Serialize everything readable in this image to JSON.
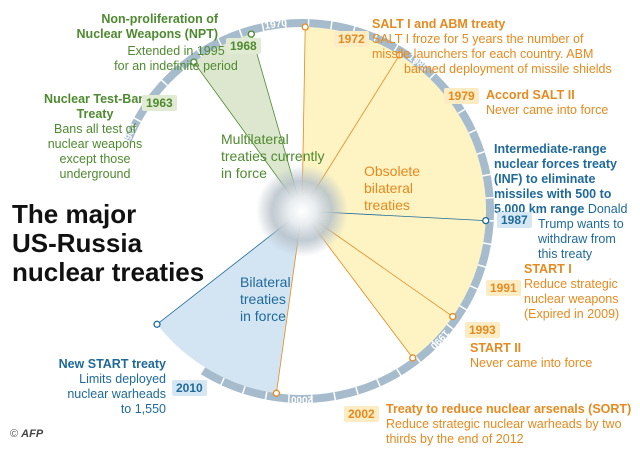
{
  "title": {
    "line1": "The major",
    "line2": "US-Russia",
    "line3": "nuclear treaties"
  },
  "zones": {
    "multilateral": [
      "Multilateral",
      "treaties currently",
      "in force"
    ],
    "obsolete": [
      "Obsolete",
      "bilateral",
      "treaties"
    ],
    "bilateral": [
      "Bilateral",
      "treaties",
      "in force"
    ]
  },
  "decades": [
    "1960",
    "1970",
    "1980",
    "1990",
    "2000"
  ],
  "treaties": [
    {
      "year": "1968",
      "name": [
        "Non-proliferation of",
        "Nuclear Weapons (NPT)"
      ],
      "desc": [
        "Extended in 1995",
        "for an indefinite period"
      ]
    },
    {
      "year": "1963",
      "name": [
        "Nuclear Test-Ban",
        "Treaty"
      ],
      "desc": [
        "Bans all test of",
        "nuclear weapons",
        "except those",
        "underground"
      ]
    },
    {
      "year": "1972",
      "name": [
        "SALT I and  ABM treaty"
      ],
      "desc": [
        "SALT I froze for 5 years the number of",
        "missile launchers for each country. ABM",
        "banned deployment of missile shields"
      ]
    },
    {
      "year": "1979",
      "name": [
        "Accord  SALT II"
      ],
      "desc": [
        "Never came into force"
      ]
    },
    {
      "year": "1987",
      "name": [
        "Intermediate-range",
        "nuclear forces treaty",
        "(INF) to eliminate",
        "missiles with 500 to",
        "5,000 km range"
      ],
      "desc_inline": "Donald",
      "desc": [
        "Trump wants to",
        "withdraw from",
        "this treaty"
      ]
    },
    {
      "year": "1991",
      "name": [
        "START I"
      ],
      "desc": [
        "Reduce strategic",
        "nuclear weapons",
        "(Expired in 2009)"
      ]
    },
    {
      "year": "1993",
      "name": [
        "START II"
      ],
      "desc": [
        "Never came into force"
      ]
    },
    {
      "year": "2010",
      "name": [
        "New START treaty"
      ],
      "desc": [
        "Limits deployed",
        "nuclear warheads",
        "to 1,550"
      ]
    },
    {
      "year": "2002",
      "name": [
        "Treaty to reduce nuclear arsenals (SORT)"
      ],
      "desc": [
        "Reduce strategic nuclear warheads by two",
        "thirds by the end of 2012"
      ]
    }
  ],
  "credit": {
    "symbol": "©",
    "agency": "AFP"
  },
  "colors": {
    "green_text": "#4e8a2f",
    "orange_text": "#e58a1f",
    "blue_text": "#1f6a9a",
    "green_fill": "#dde7cf",
    "yellow_fill": "#fdf3c3",
    "blue_fill": "#d3e5f3",
    "ring": "#a6bccd"
  }
}
